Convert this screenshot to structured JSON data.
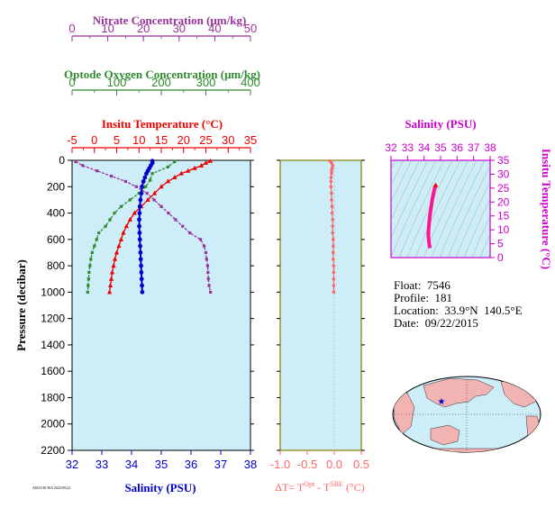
{
  "colors": {
    "nitrate": "#993399",
    "oxygen": "#2e8b2e",
    "temperature": "#ee0000",
    "salinity": "#0000cc",
    "delta_t": "#ff6666",
    "ts_plot": "#cc00cc",
    "panel_bg": "#cdeef8",
    "olive": "#808000"
  },
  "info": {
    "float_label": "Float:",
    "float_value": "7546",
    "profile_label": "Profile:",
    "profile_value": "181",
    "location_label": "Location:",
    "location_value": "33.9°N  140.5°E",
    "date_label": "Date:",
    "date_value": "09/22/2015"
  },
  "footer_tiny": "AWI/UW/ISA 2025/09/22",
  "chart_data": [
    {
      "type": "line",
      "panel": "main profile",
      "ylabel": "Pressure (decibar)",
      "ylim": [
        2200,
        0
      ],
      "y_ticks": [
        0,
        200,
        400,
        600,
        800,
        1000,
        1200,
        1400,
        1600,
        1800,
        2000,
        2200
      ],
      "axes": [
        {
          "key": "nitrate",
          "label": "Nitrate Concentration (μm/kg)",
          "range": [
            0,
            50
          ],
          "ticks": [
            0,
            10,
            20,
            30,
            40,
            50
          ],
          "position": "top-1"
        },
        {
          "key": "oxygen",
          "label": "Optode Oxygen Concentration (μm/kg)",
          "range": [
            0,
            400
          ],
          "ticks": [
            0,
            100,
            200,
            300,
            400
          ],
          "position": "top-2"
        },
        {
          "key": "temperature",
          "label": "Insitu Temperature (°C)",
          "range": [
            -5,
            35
          ],
          "ticks": [
            -5,
            0,
            5,
            10,
            15,
            20,
            25,
            30,
            35
          ],
          "position": "top-3"
        },
        {
          "key": "salinity",
          "label": "Salinity (PSU)",
          "range": [
            32,
            38
          ],
          "ticks": [
            32,
            33,
            34,
            35,
            36,
            37,
            38
          ],
          "position": "bottom"
        }
      ],
      "series": [
        {
          "key": "nitrate",
          "pressure": [
            10,
            40,
            80,
            120,
            160,
            200,
            250,
            300,
            350,
            400,
            450,
            500,
            550,
            600,
            650,
            700,
            750,
            800,
            850,
            900,
            950,
            1000
          ],
          "values": [
            1,
            3,
            7,
            11,
            15,
            18,
            21,
            23,
            25,
            27,
            29,
            31,
            33,
            36,
            37,
            37.5,
            37.7,
            38,
            38.1,
            38.2,
            38.4,
            38.8
          ]
        },
        {
          "key": "oxygen",
          "pressure": [
            10,
            50,
            100,
            150,
            200,
            250,
            300,
            350,
            400,
            450,
            500,
            550,
            600,
            650,
            700,
            750,
            800,
            850,
            900,
            950,
            1000
          ],
          "values": [
            230,
            215,
            180,
            175,
            165,
            150,
            130,
            110,
            95,
            85,
            75,
            60,
            55,
            50,
            45,
            42,
            40,
            38,
            37,
            36,
            35
          ]
        },
        {
          "key": "temperature",
          "pressure": [
            5,
            20,
            40,
            60,
            80,
            100,
            130,
            160,
            200,
            250,
            300,
            350,
            400,
            450,
            500,
            550,
            600,
            650,
            700,
            750,
            800,
            850,
            900,
            950,
            1000
          ],
          "values": [
            26.0,
            25.0,
            24.0,
            22.5,
            21.0,
            19.5,
            18.0,
            16.5,
            15.0,
            13.5,
            12.0,
            10.5,
            9.0,
            8.0,
            7.2,
            6.5,
            6.0,
            5.5,
            5.0,
            4.6,
            4.3,
            4.0,
            3.8,
            3.6,
            3.4
          ]
        },
        {
          "key": "salinity",
          "pressure": [
            5,
            20,
            40,
            60,
            80,
            100,
            130,
            160,
            200,
            250,
            300,
            350,
            400,
            450,
            500,
            550,
            600,
            650,
            700,
            750,
            800,
            850,
            900,
            950,
            1000
          ],
          "values": [
            34.7,
            34.7,
            34.65,
            34.6,
            34.55,
            34.5,
            34.45,
            34.4,
            34.35,
            34.33,
            34.3,
            34.28,
            34.27,
            34.26,
            34.26,
            34.27,
            34.28,
            34.29,
            34.3,
            34.31,
            34.32,
            34.33,
            34.34,
            34.35,
            34.36
          ]
        }
      ]
    },
    {
      "type": "line",
      "panel": "temperature difference",
      "xlabel": "ΔT= T",
      "xlabel_sup1": "Opt",
      "xlabel_mid": " - T",
      "xlabel_sup2": "SBE",
      "xlabel_unit": " (°C)",
      "xlim": [
        -1.0,
        0.5
      ],
      "x_ticks": [
        "-1.0",
        "-0.5",
        "0.0",
        "0.5"
      ],
      "ylim": [
        2200,
        0
      ],
      "pressure": [
        5,
        20,
        40,
        60,
        80,
        100,
        130,
        160,
        200,
        250,
        300,
        350,
        400,
        450,
        500,
        550,
        600,
        650,
        700,
        750,
        800,
        850,
        900,
        950,
        1000
      ],
      "values": [
        -0.08,
        -0.05,
        -0.03,
        -0.04,
        -0.05,
        -0.05,
        -0.06,
        -0.06,
        -0.06,
        -0.05,
        -0.05,
        -0.04,
        -0.04,
        -0.03,
        -0.03,
        -0.03,
        -0.02,
        -0.02,
        -0.02,
        -0.02,
        -0.01,
        -0.01,
        -0.01,
        -0.01,
        -0.01
      ]
    },
    {
      "type": "line",
      "panel": "T-S diagram",
      "title": "Salinity (PSU)",
      "ylabel": "Insitu Temperature (°C)",
      "xlim": [
        32,
        38
      ],
      "ylim": [
        0,
        35
      ],
      "x_ticks": [
        32,
        33,
        34,
        35,
        36,
        37,
        38
      ],
      "y_ticks": [
        0,
        5,
        10,
        15,
        20,
        25,
        30,
        35
      ],
      "salinity": [
        34.7,
        34.6,
        34.5,
        34.45,
        34.4,
        34.35,
        34.3,
        34.27,
        34.26,
        34.28,
        34.3,
        34.32,
        34.34,
        34.36
      ],
      "temperature": [
        26.0,
        24.0,
        21.0,
        19.0,
        17.0,
        15.0,
        12.0,
        10.0,
        8.0,
        6.5,
        5.5,
        4.6,
        4.0,
        3.4
      ]
    }
  ]
}
